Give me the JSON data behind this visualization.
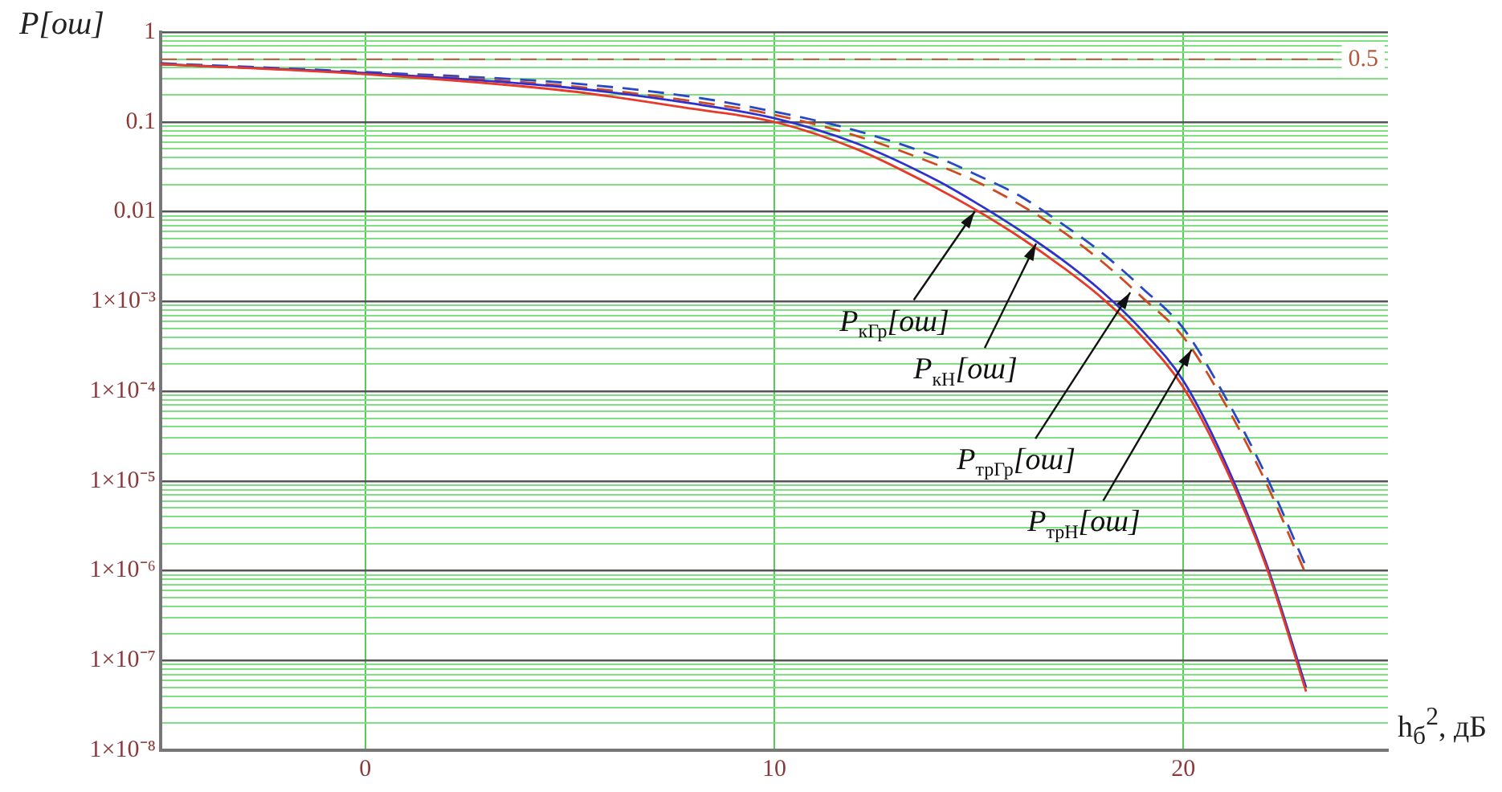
{
  "chart_data": {
    "type": "line",
    "ylabel": "P[ош]",
    "xlabel": "h$_{б}$$^{2}$, дБ",
    "log": "y",
    "grid": true,
    "marker": "none",
    "x": [
      -5,
      0,
      5,
      8,
      10,
      12,
      14,
      15,
      16,
      17,
      18,
      19,
      20,
      21,
      22,
      23
    ],
    "xlim": [
      -5,
      25
    ],
    "xticks": [
      0,
      10,
      20
    ],
    "ylim": [
      1e-08,
      1
    ],
    "yticks": [
      1,
      0.1,
      0.01,
      {
        "value": 0.001,
        "label": "1×10⁻³"
      },
      {
        "value": 0.0001,
        "label": "1×10⁻⁴"
      },
      {
        "value": 1e-05,
        "label": "1×10⁻⁵"
      },
      {
        "value": 1e-06,
        "label": "1×10⁻⁶"
      },
      {
        "value": 1e-07,
        "label": "1×10⁻⁷"
      },
      {
        "value": 1e-08,
        "label": "1×10⁻⁸"
      },
      {
        "value": 0.2,
        "label": null
      },
      {
        "value": 0.3,
        "label": null
      },
      {
        "value": 0.4,
        "label": null
      },
      {
        "value": 0.5,
        "label": null
      },
      {
        "value": 0.6,
        "label": null
      },
      {
        "value": 0.7,
        "label": null
      },
      {
        "value": 0.8,
        "label": null
      },
      {
        "value": 0.9,
        "label": null
      },
      {
        "value": 0.02,
        "label": null
      },
      {
        "value": 0.03,
        "label": null
      },
      {
        "value": 0.04,
        "label": null
      },
      {
        "value": 0.05,
        "label": null
      },
      {
        "value": 0.06,
        "label": null
      },
      {
        "value": 0.07,
        "label": null
      },
      {
        "value": 0.08,
        "label": null
      },
      {
        "value": 0.09,
        "label": null
      },
      {
        "value": 0.002,
        "label": null
      },
      {
        "value": 0.003,
        "label": null
      },
      {
        "value": 0.004,
        "label": null
      },
      {
        "value": 0.005,
        "label": null
      },
      {
        "value": 0.006,
        "label": null
      },
      {
        "value": 0.007,
        "label": null
      },
      {
        "value": 0.008,
        "label": null
      },
      {
        "value": 0.009,
        "label": null
      },
      {
        "value": 0.0002,
        "label": null
      },
      {
        "value": 0.0003,
        "label": null
      },
      {
        "value": 0.0004,
        "label": null
      },
      {
        "value": 0.0005,
        "label": null
      },
      {
        "value": 0.0006,
        "label": null
      },
      {
        "value": 0.0007,
        "label": null
      },
      {
        "value": 0.0008,
        "label": null
      },
      {
        "value": 0.0009,
        "label": null
      },
      {
        "value": 2e-05,
        "label": null
      },
      {
        "value": 3e-05,
        "label": null
      },
      {
        "value": 4e-05,
        "label": null
      },
      {
        "value": 5e-05,
        "label": null
      },
      {
        "value": 6e-05,
        "label": null
      },
      {
        "value": 7e-05,
        "label": null
      },
      {
        "value": 8e-05,
        "label": null
      },
      {
        "value": 9e-05,
        "label": null
      },
      {
        "value": 2e-06,
        "label": null
      },
      {
        "value": 3e-06,
        "label": null
      },
      {
        "value": 4e-06,
        "label": null
      },
      {
        "value": 5e-06,
        "label": null
      },
      {
        "value": 6e-06,
        "label": null
      },
      {
        "value": 7e-06,
        "label": null
      },
      {
        "value": 8e-06,
        "label": null
      },
      {
        "value": 9e-06,
        "label": null
      },
      {
        "value": 2e-07,
        "label": null
      },
      {
        "value": 3e-07,
        "label": null
      },
      {
        "value": 4e-07,
        "label": null
      },
      {
        "value": 5e-07,
        "label": null
      },
      {
        "value": 6e-07,
        "label": null
      },
      {
        "value": 7e-07,
        "label": null
      },
      {
        "value": 8e-07,
        "label": null
      },
      {
        "value": 9e-07,
        "label": null
      },
      {
        "value": 2e-08,
        "label": null
      },
      {
        "value": 3e-08,
        "label": null
      },
      {
        "value": 4e-08,
        "label": null
      },
      {
        "value": 5e-08,
        "label": null
      },
      {
        "value": 6e-08,
        "label": null
      },
      {
        "value": 7e-08,
        "label": null
      },
      {
        "value": 8e-08,
        "label": null
      },
      {
        "value": 9e-08,
        "label": null
      }
    ],
    "series": [
      {
        "color": "#e83a2a",
        "line_style": "solid",
        "values": [
          0.44,
          0.34,
          0.22,
          0.14,
          0.1,
          0.05,
          0.018,
          0.01,
          0.0052,
          0.0025,
          0.0011,
          0.0004,
          0.00011,
          1.5e-05,
          1.2e-06,
          4.5e-08
        ]
      },
      {
        "color": "#3030d0",
        "line_style": "solid",
        "values": [
          0.44,
          0.35,
          0.24,
          0.16,
          0.11,
          0.058,
          0.022,
          0.012,
          0.0062,
          0.003,
          0.0013,
          0.00047,
          0.00013,
          1.7e-05,
          1.3e-06,
          5e-08
        ]
      },
      {
        "color": "#d04a20",
        "line_style": "dashed",
        "values": [
          0.44,
          0.35,
          0.25,
          0.17,
          0.12,
          0.07,
          0.033,
          0.021,
          0.012,
          0.0062,
          0.0028,
          0.0011,
          0.0004,
          7.5e-05,
          1e-05,
          9e-07
        ]
      },
      {
        "color": "#2848c8",
        "line_style": "dashed",
        "values": [
          0.45,
          0.36,
          0.27,
          0.19,
          0.13,
          0.08,
          0.04,
          0.025,
          0.015,
          0.0075,
          0.0035,
          0.0014,
          0.0005,
          9e-05,
          1.2e-05,
          1.1e-06
        ]
      }
    ],
    "ref_lines": [
      {
        "axis": "y",
        "value": 0.5,
        "label": "0.5",
        "color": "#b05a3a",
        "line_style": "dashed"
      }
    ],
    "annotations": [
      {
        "text": "P$_{кГр}$[ош]",
        "x": 14.9,
        "y": 0.01
      },
      {
        "text": "P$_{кН}$[ош]",
        "x": 16.4,
        "y": 0.0044
      },
      {
        "text": "P$_{трГр}$[ош]",
        "x": 18.7,
        "y": 0.00126
      },
      {
        "text": "P$_{трН}$[ош]",
        "x": 20.2,
        "y": 0.00029
      }
    ]
  }
}
